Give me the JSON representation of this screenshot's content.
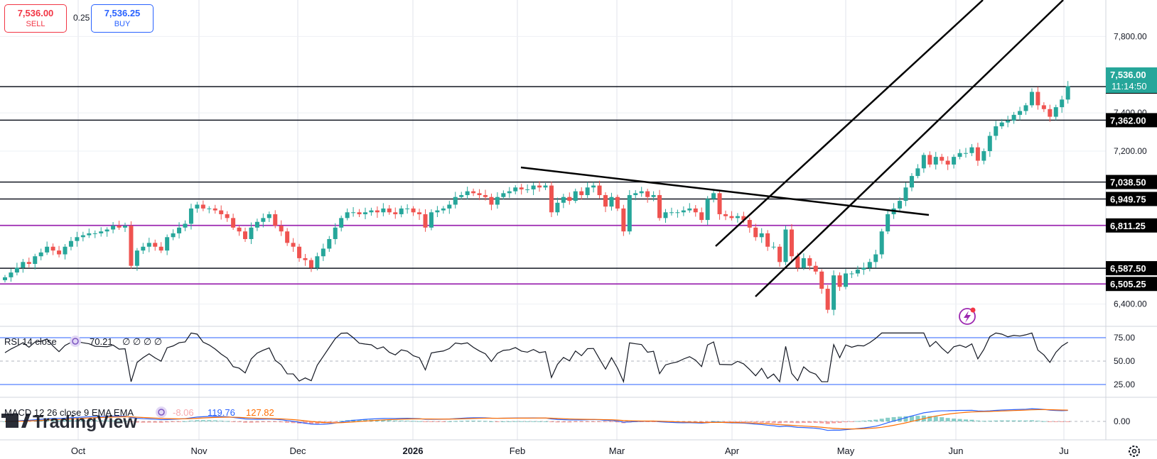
{
  "trade": {
    "sell_price": "7,536.00",
    "sell_label": "SELL",
    "spread": "0.25",
    "buy_price": "7,536.25",
    "buy_label": "BUY"
  },
  "colors": {
    "up": "#26a69a",
    "down": "#ef5350",
    "level_line": "#131722",
    "purple_line": "#9c27b0",
    "rsi_band": "#2962ff",
    "macd_line": "#2962ff",
    "signal_line": "#ff6d00"
  },
  "price_axis": {
    "ticks": [
      "7,800.00",
      "7,400.00",
      "7,200.00",
      "6,400.00"
    ]
  },
  "levels": [
    {
      "label": "7,537.75",
      "value": 7537.75
    },
    {
      "label": "7,362.00",
      "value": 7362.0
    },
    {
      "label": "7,038.50",
      "value": 7038.5
    },
    {
      "label": "6,949.75",
      "value": 6949.75
    },
    {
      "label": "6,811.25",
      "value": 6811.25
    },
    {
      "label": "6,587.50",
      "value": 6587.5
    },
    {
      "label": "6,505.25",
      "value": 6505.25
    }
  ],
  "current_price": {
    "price": "7,536.00",
    "countdown": "11:14:50"
  },
  "time_axis": [
    "Oct",
    "Nov",
    "Dec",
    "2026",
    "Feb",
    "Mar",
    "Apr",
    "May",
    "Jun",
    "Ju"
  ],
  "rsi": {
    "label": "RSI 14 close",
    "value": "70.21",
    "extras": "∅ ∅ ∅ ∅",
    "ticks": [
      "75.00",
      "50.00",
      "25.00"
    ],
    "last": 70.21
  },
  "macd": {
    "label": "MACD 12 26 close 9 EMA EMA",
    "hist_value": "-8.06",
    "macd_value": "119.76",
    "signal_value": "127.82",
    "ticks": [
      "0.00"
    ]
  },
  "watermark": "TradingView",
  "chart_data": {
    "type": "candlestick",
    "ylim": [
      6300,
      7920
    ],
    "closes": [
      6540,
      6565,
      6590,
      6620,
      6610,
      6650,
      6670,
      6700,
      6680,
      6660,
      6700,
      6730,
      6750,
      6760,
      6770,
      6770,
      6780,
      6790,
      6810,
      6800,
      6810,
      6600,
      6680,
      6700,
      6720,
      6700,
      6680,
      6750,
      6770,
      6800,
      6820,
      6900,
      6920,
      6900,
      6900,
      6890,
      6870,
      6850,
      6800,
      6780,
      6740,
      6800,
      6830,
      6850,
      6870,
      6810,
      6780,
      6720,
      6700,
      6640,
      6630,
      6590,
      6650,
      6690,
      6740,
      6800,
      6850,
      6880,
      6880,
      6870,
      6880,
      6890,
      6880,
      6900,
      6880,
      6870,
      6900,
      6900,
      6880,
      6870,
      6800,
      6880,
      6890,
      6900,
      6920,
      6960,
      6970,
      6990,
      6980,
      6970,
      6960,
      6920,
      6960,
      6980,
      6990,
      7010,
      7000,
      7000,
      7020,
      7010,
      7020,
      6880,
      6930,
      6960,
      6940,
      6990,
      6970,
      7010,
      7020,
      6970,
      6910,
      6960,
      6900,
      6780,
      6970,
      6980,
      6990,
      6960,
      6970,
      6850,
      6880,
      6880,
      6880,
      6890,
      6900,
      6880,
      6840,
      6950,
      6980,
      6870,
      6860,
      6850,
      6860,
      6840,
      6800,
      6750,
      6770,
      6700,
      6700,
      6620,
      6790,
      6650,
      6590,
      6640,
      6600,
      6570,
      6480,
      6370,
      6550,
      6490,
      6560,
      6560,
      6580,
      6590,
      6620,
      6660,
      6780,
      6870,
      6900,
      6940,
      7010,
      7070,
      7110,
      7180,
      7130,
      7170,
      7150,
      7130,
      7170,
      7190,
      7190,
      7220,
      7150,
      7200,
      7280,
      7330,
      7350,
      7360,
      7390,
      7410,
      7440,
      7510,
      7440,
      7420,
      7380,
      7430,
      7470,
      7540
    ]
  }
}
